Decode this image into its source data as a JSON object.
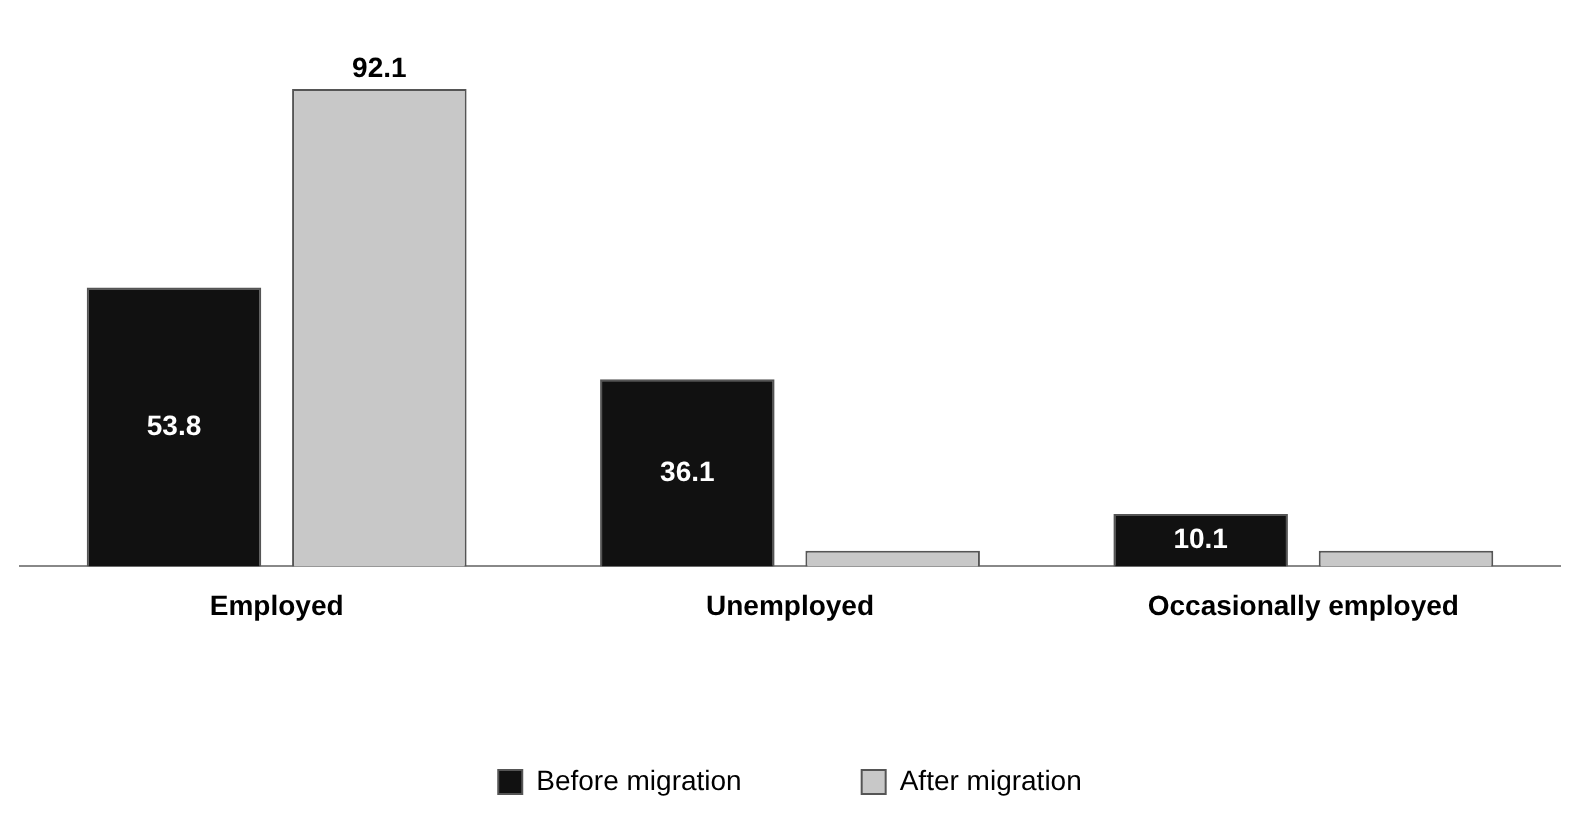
{
  "chart_data": {
    "type": "bar",
    "categories": [
      "Employed",
      "Unemployed",
      "Occasionally employed"
    ],
    "series": [
      {
        "name": "Before migration",
        "color": "#111111",
        "values": [
          53.8,
          36.1,
          10.1
        ],
        "value_labels": [
          "53.8",
          "36.1",
          "10.1"
        ]
      },
      {
        "name": "After migration",
        "color": "#c8c8c8",
        "values": [
          92.1,
          3,
          3
        ],
        "value_labels": [
          "92.1",
          null,
          null
        ]
      }
    ],
    "grid": false,
    "legend": "bottom",
    "tick_labels": "x"
  }
}
